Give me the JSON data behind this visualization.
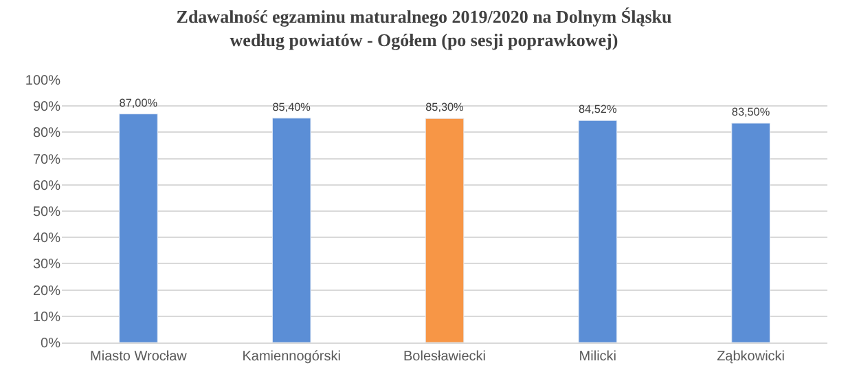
{
  "chart_data": {
    "type": "bar",
    "title": "Zdawalność egzaminu maturalnego 2019/2020 na Dolnym Śląsku\nwedług powiatów - Ogółem (po sesji poprawkowej)",
    "categories": [
      "Miasto Wrocław",
      "Kamiennogórski",
      "Bolesławiecki",
      "Milicki",
      "Ząbkowicki"
    ],
    "values": [
      87.0,
      85.4,
      85.3,
      84.52,
      83.5
    ],
    "value_labels": [
      "87,00%",
      "85,40%",
      "85,30%",
      "84,52%",
      "83,50%"
    ],
    "colors": [
      "#5b8ed6",
      "#5b8ed6",
      "#f79646",
      "#5b8ed6",
      "#5b8ed6"
    ],
    "ylim": [
      0,
      100
    ],
    "yticks": [
      {
        "value": 0,
        "label": "0%"
      },
      {
        "value": 10,
        "label": "10%"
      },
      {
        "value": 20,
        "label": "20%"
      },
      {
        "value": 30,
        "label": "30%"
      },
      {
        "value": 40,
        "label": "40%"
      },
      {
        "value": 50,
        "label": "50%"
      },
      {
        "value": 60,
        "label": "60%"
      },
      {
        "value": 70,
        "label": "70%"
      },
      {
        "value": 80,
        "label": "80%"
      },
      {
        "value": 90,
        "label": "90%"
      },
      {
        "value": 100,
        "label": "100%"
      }
    ],
    "grid": "y"
  }
}
